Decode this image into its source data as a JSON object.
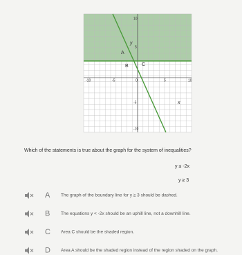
{
  "graph": {
    "x_axis_label": "x",
    "y_axis_label": "y",
    "x_tick_labels": [
      "-10",
      "-5",
      "0",
      "5",
      "10"
    ],
    "y_tick_labels": [
      "10",
      "5",
      "-5",
      "-10"
    ],
    "region_labels": [
      "A",
      "B",
      "C"
    ]
  },
  "question": "Which of the statements is true about the graph for the system of inequalities?",
  "inequalities": [
    "y ≤ -2x",
    "y ≥ 3"
  ],
  "options": [
    {
      "letter": "A",
      "text": "The graph of the boundary line for y ≥ 3 should be dashed."
    },
    {
      "letter": "B",
      "text": "The equations y < -2x should be an uphill line, not a downhill line."
    },
    {
      "letter": "C",
      "text": "Area C should be the shaded region."
    },
    {
      "letter": "D",
      "text": "Area A should be the shaded region instead of the region shaded on the graph."
    }
  ]
}
